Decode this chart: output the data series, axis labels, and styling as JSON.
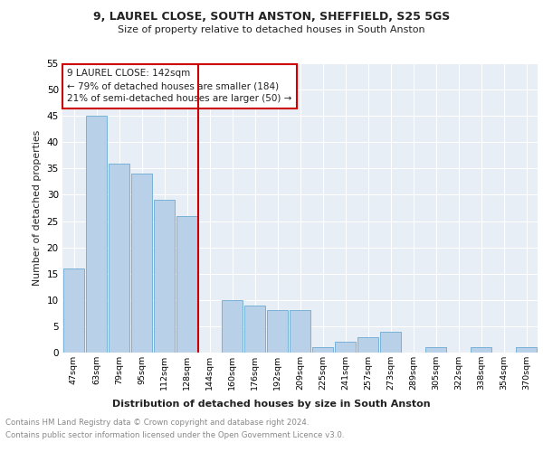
{
  "title1": "9, LAUREL CLOSE, SOUTH ANSTON, SHEFFIELD, S25 5GS",
  "title2": "Size of property relative to detached houses in South Anston",
  "xlabel": "Distribution of detached houses by size in South Anston",
  "ylabel": "Number of detached properties",
  "footnote1": "Contains HM Land Registry data © Crown copyright and database right 2024.",
  "footnote2": "Contains public sector information licensed under the Open Government Licence v3.0.",
  "categories": [
    "47sqm",
    "63sqm",
    "79sqm",
    "95sqm",
    "112sqm",
    "128sqm",
    "144sqm",
    "160sqm",
    "176sqm",
    "192sqm",
    "209sqm",
    "225sqm",
    "241sqm",
    "257sqm",
    "273sqm",
    "289sqm",
    "305sqm",
    "322sqm",
    "338sqm",
    "354sqm",
    "370sqm"
  ],
  "values": [
    16,
    45,
    36,
    34,
    29,
    26,
    0,
    10,
    9,
    8,
    8,
    1,
    2,
    3,
    4,
    0,
    1,
    0,
    1,
    0,
    1
  ],
  "bar_color": "#b8d0e8",
  "bar_edge_color": "#6aaad4",
  "vline_color": "#cc0000",
  "vline_x_index": 6,
  "annotation_text": "9 LAUREL CLOSE: 142sqm\n← 79% of detached houses are smaller (184)\n21% of semi-detached houses are larger (50) →",
  "ylim": [
    0,
    55
  ],
  "yticks": [
    0,
    5,
    10,
    15,
    20,
    25,
    30,
    35,
    40,
    45,
    50,
    55
  ],
  "fig_bg_color": "#ffffff",
  "plot_bg_color": "#e8eef5"
}
